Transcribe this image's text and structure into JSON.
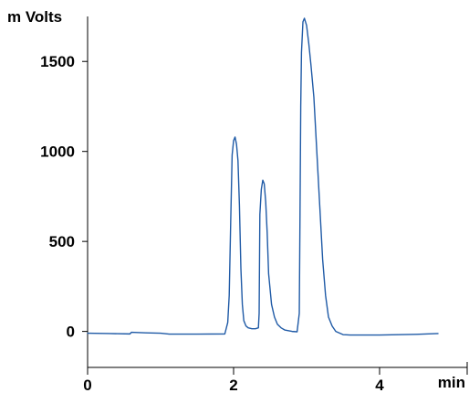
{
  "chart_data": {
    "type": "line",
    "title": "",
    "ylabel": "m Volts",
    "xlabel": "min",
    "xlim": [
      0,
      5
    ],
    "ylim": [
      -200,
      1750
    ],
    "x_ticks": [
      0,
      2,
      4
    ],
    "x_tick_labels": [
      "0",
      "2",
      "4"
    ],
    "y_ticks": [
      0,
      500,
      1000,
      1500
    ],
    "y_tick_labels": [
      "0",
      "500",
      "1000",
      "1500"
    ],
    "grid": false,
    "series": [
      {
        "color": "#1f5aa6",
        "x": [
          0.0,
          0.3,
          0.58,
          0.6,
          0.8,
          1.0,
          1.12,
          1.15,
          1.5,
          1.88,
          1.92,
          1.94,
          1.96,
          1.98,
          2.0,
          2.02,
          2.04,
          2.06,
          2.08,
          2.1,
          2.12,
          2.14,
          2.17,
          2.2,
          2.25,
          2.3,
          2.34,
          2.35,
          2.36,
          2.38,
          2.4,
          2.42,
          2.44,
          2.46,
          2.48,
          2.52,
          2.56,
          2.6,
          2.65,
          2.7,
          2.8,
          2.87,
          2.9,
          2.91,
          2.92,
          2.93,
          2.95,
          2.97,
          3.0,
          3.03,
          3.06,
          3.1,
          3.14,
          3.18,
          3.22,
          3.26,
          3.3,
          3.35,
          3.4,
          3.5,
          3.6,
          4.0,
          4.5,
          4.8
        ],
        "values": [
          -10,
          -12,
          -14,
          -5,
          -8,
          -10,
          -15,
          -15,
          -15,
          -14,
          50,
          200,
          600,
          980,
          1060,
          1080,
          1040,
          950,
          700,
          350,
          150,
          60,
          30,
          20,
          15,
          15,
          20,
          100,
          650,
          790,
          840,
          820,
          720,
          550,
          320,
          150,
          80,
          40,
          20,
          8,
          0,
          -2,
          100,
          650,
          1250,
          1550,
          1720,
          1740,
          1700,
          1600,
          1480,
          1300,
          1000,
          700,
          400,
          200,
          80,
          30,
          0,
          -18,
          -20,
          -20,
          -16,
          -12
        ]
      }
    ]
  }
}
